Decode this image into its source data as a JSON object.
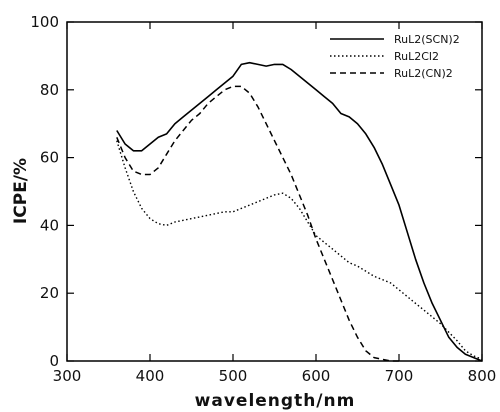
{
  "chart_data": {
    "type": "line",
    "title": "",
    "xlabel": "wavelength/nm",
    "ylabel": "ICPE/%",
    "xlim": [
      300,
      800
    ],
    "ylim": [
      0,
      100
    ],
    "xticks": [
      300,
      400,
      500,
      600,
      700,
      800
    ],
    "yticks": [
      0,
      20,
      40,
      60,
      80,
      100
    ],
    "grid": false,
    "legend_position": "top-right",
    "series": [
      {
        "name": "RuL2(SCN)2",
        "style": "solid",
        "color": "#000000",
        "x": [
          360,
          370,
          380,
          390,
          400,
          410,
          420,
          430,
          440,
          450,
          460,
          470,
          480,
          490,
          500,
          510,
          520,
          530,
          540,
          550,
          560,
          570,
          580,
          590,
          600,
          610,
          620,
          630,
          640,
          650,
          660,
          670,
          680,
          690,
          700,
          710,
          720,
          730,
          740,
          750,
          760,
          770,
          780,
          790,
          800
        ],
        "y": [
          68,
          64,
          62,
          62,
          64,
          66,
          67,
          70,
          72,
          74,
          76,
          78,
          80,
          82,
          84,
          87.5,
          88,
          87.5,
          87,
          87.5,
          87.5,
          86,
          84,
          82,
          80,
          78,
          76,
          73,
          72,
          70,
          67,
          63,
          58,
          52,
          46,
          38,
          30,
          23,
          17,
          12,
          7,
          4,
          2,
          1,
          0
        ]
      },
      {
        "name": "RuL2Cl2",
        "style": "dashdot",
        "color": "#000000",
        "x": [
          360,
          370,
          380,
          390,
          400,
          410,
          420,
          430,
          440,
          450,
          460,
          470,
          480,
          490,
          500,
          510,
          520,
          530,
          540,
          550,
          560,
          570,
          580,
          590,
          600,
          610,
          620,
          630,
          640,
          650,
          660,
          670,
          680,
          690,
          700,
          710,
          720,
          730,
          740,
          750,
          760,
          770,
          780,
          790,
          800
        ],
        "y": [
          65,
          57,
          50,
          45,
          42,
          40.5,
          40,
          41,
          41.5,
          42,
          42.5,
          43,
          43.5,
          44,
          44,
          45,
          46,
          47,
          48,
          49,
          49.5,
          48,
          45,
          41,
          37,
          35,
          33,
          31,
          29,
          28,
          26.5,
          25,
          24,
          23,
          21,
          19,
          17,
          15,
          13,
          11,
          8.5,
          6,
          3,
          1.5,
          0.5
        ]
      },
      {
        "name": "RuL2(CN)2",
        "style": "dashed",
        "color": "#000000",
        "x": [
          360,
          370,
          380,
          390,
          400,
          410,
          420,
          430,
          440,
          450,
          460,
          470,
          480,
          490,
          500,
          510,
          520,
          530,
          540,
          550,
          560,
          570,
          580,
          590,
          600,
          610,
          620,
          630,
          640,
          650,
          660,
          670,
          680,
          690,
          700
        ],
        "y": [
          66,
          60,
          56,
          55,
          55,
          57,
          61,
          65,
          68,
          71,
          73,
          76,
          78,
          80,
          81,
          81,
          79,
          75,
          70,
          65,
          60,
          55,
          49,
          43,
          36,
          30,
          24,
          18,
          12,
          7,
          3,
          1,
          0.5,
          0,
          0
        ]
      }
    ]
  }
}
